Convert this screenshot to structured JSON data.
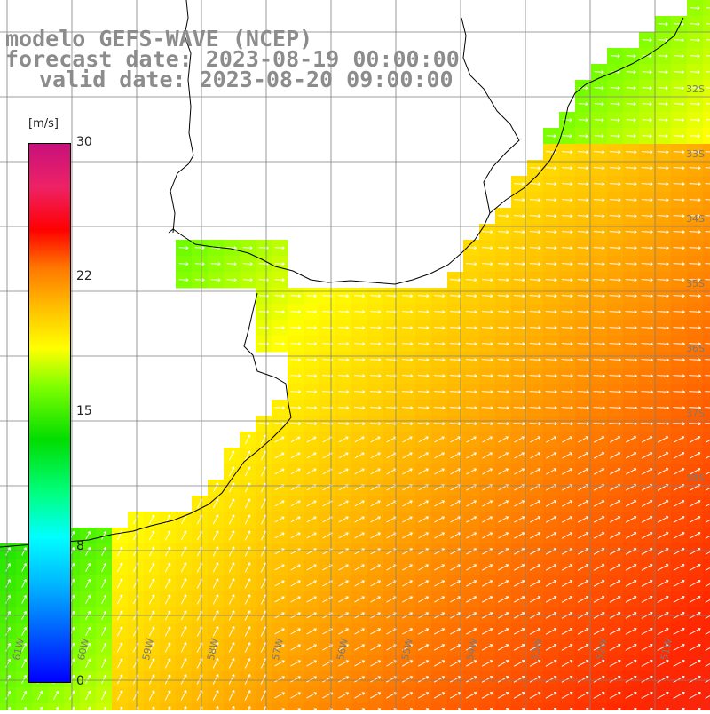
{
  "title": {
    "model": "modelo GEFS-WAVE (NCEP)",
    "forecast": "forecast date: 2023-08-19 00:00:00",
    "valid": "valid date: 2023-08-20 09:00:00"
  },
  "colorbar": {
    "unit": "[m/s]",
    "ticks": [
      "30",
      "22",
      "15",
      "8",
      "0"
    ]
  },
  "lat_labels": [
    "32S",
    "33S",
    "34S",
    "35S",
    "36S",
    "37S",
    "38S"
  ],
  "lon_labels": [
    "61W",
    "60W",
    "59W",
    "58W",
    "57W",
    "56W",
    "55W",
    "54W",
    "53W",
    "52W",
    "51W"
  ],
  "colors": {
    "land": "#ffffff",
    "grid": "#888888",
    "coast": "#000000",
    "arrow": "#ffffff",
    "title_text": "#8c8c8c"
  }
}
